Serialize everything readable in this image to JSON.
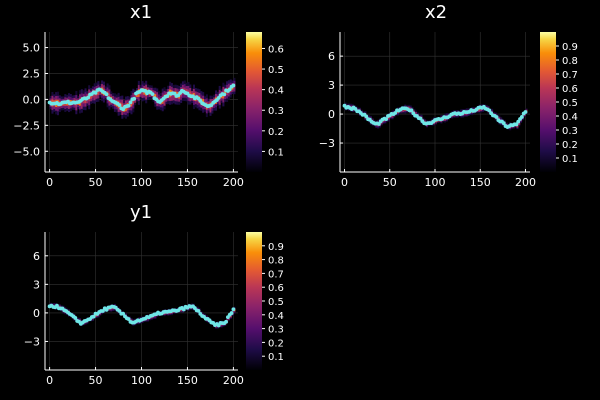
{
  "chart_data": [
    {
      "type": "heatmap",
      "title": "x1",
      "xlim": [
        -5,
        205
      ],
      "ylim": [
        -7,
        6.5
      ],
      "xticks": [
        0,
        50,
        100,
        150,
        200
      ],
      "yticks": [
        -5.0,
        -2.5,
        0.0,
        2.5,
        5.0
      ],
      "ytick_labels": [
        "−5.0",
        "−2.5",
        "0.0",
        "2.5",
        "5.0"
      ],
      "colorbar": {
        "min": 0,
        "max": 0.68,
        "ticks": [
          0.1,
          0.2,
          0.3,
          0.4,
          0.5,
          0.6
        ],
        "labels": [
          "0.1",
          "0.2",
          "0.3",
          "0.4",
          "0.5",
          "0.6"
        ]
      },
      "grid": true,
      "mean_x": [
        0,
        10,
        20,
        30,
        40,
        45,
        50,
        55,
        60,
        65,
        70,
        75,
        80,
        85,
        90,
        95,
        100,
        105,
        110,
        115,
        120,
        125,
        130,
        135,
        140,
        145,
        150,
        155,
        160,
        165,
        170,
        175,
        180,
        185,
        190,
        195,
        200
      ],
      "mean_y": [
        -0.3,
        -0.4,
        -0.3,
        -0.3,
        0.1,
        0.4,
        0.7,
        0.9,
        0.6,
        0.1,
        -0.3,
        -0.5,
        -0.9,
        -0.6,
        -0.1,
        0.6,
        0.8,
        0.7,
        0.7,
        0.1,
        -0.2,
        0.2,
        0.6,
        0.5,
        0.4,
        0.9,
        0.6,
        0.3,
        0.1,
        -0.2,
        -0.6,
        -0.6,
        -0.1,
        0.3,
        0.6,
        1.0,
        1.3
      ],
      "spread": 0.9
    },
    {
      "type": "heatmap",
      "title": "x2",
      "xlim": [
        -5,
        205
      ],
      "ylim": [
        -6,
        8.5
      ],
      "xticks": [
        0,
        50,
        100,
        150,
        200
      ],
      "yticks": [
        -3,
        0,
        3,
        6
      ],
      "ytick_labels": [
        "−3",
        "0",
        "3",
        "6"
      ],
      "colorbar": {
        "min": 0,
        "max": 1.0,
        "ticks": [
          0.1,
          0.2,
          0.3,
          0.4,
          0.5,
          0.6,
          0.7,
          0.8,
          0.9
        ],
        "labels": [
          "0.1",
          "0.2",
          "0.3",
          "0.4",
          "0.5",
          "0.6",
          "0.7",
          "0.8",
          "0.9"
        ]
      },
      "grid": true,
      "mean_x": [
        0,
        10,
        20,
        30,
        35,
        40,
        50,
        60,
        70,
        80,
        90,
        100,
        110,
        120,
        130,
        140,
        150,
        155,
        160,
        170,
        180,
        190,
        200
      ],
      "mean_y": [
        0.8,
        0.6,
        0.0,
        -0.8,
        -1.1,
        -0.8,
        -0.2,
        0.4,
        0.6,
        -0.2,
        -1.0,
        -0.7,
        -0.4,
        0.0,
        0.1,
        0.3,
        0.6,
        0.7,
        0.3,
        -0.6,
        -1.3,
        -1.1,
        0.3
      ],
      "spread": 0.35
    },
    {
      "type": "heatmap",
      "title": "y1",
      "xlim": [
        -5,
        205
      ],
      "ylim": [
        -6,
        8.5
      ],
      "xticks": [
        0,
        50,
        100,
        150,
        200
      ],
      "yticks": [
        -3,
        0,
        3,
        6
      ],
      "ytick_labels": [
        "−3",
        "0",
        "3",
        "6"
      ],
      "colorbar": {
        "min": 0,
        "max": 1.0,
        "ticks": [
          0.1,
          0.2,
          0.3,
          0.4,
          0.5,
          0.6,
          0.7,
          0.8,
          0.9
        ],
        "labels": [
          "0.1",
          "0.2",
          "0.3",
          "0.4",
          "0.5",
          "0.6",
          "0.7",
          "0.8",
          "0.9"
        ]
      },
      "grid": true,
      "mean_x": [
        0,
        10,
        20,
        30,
        35,
        40,
        50,
        60,
        70,
        80,
        90,
        100,
        110,
        120,
        130,
        140,
        150,
        155,
        160,
        170,
        180,
        190,
        200
      ],
      "mean_y": [
        0.8,
        0.6,
        0.0,
        -0.8,
        -1.1,
        -0.8,
        -0.2,
        0.4,
        0.6,
        -0.2,
        -1.0,
        -0.7,
        -0.4,
        0.0,
        0.1,
        0.3,
        0.6,
        0.7,
        0.3,
        -0.6,
        -1.3,
        -1.1,
        0.3
      ],
      "spread": 0.3
    }
  ],
  "colors": {
    "background": "#000000",
    "markers": "#6fe7e7",
    "axis": "#ffffff",
    "grid": "#333333"
  }
}
